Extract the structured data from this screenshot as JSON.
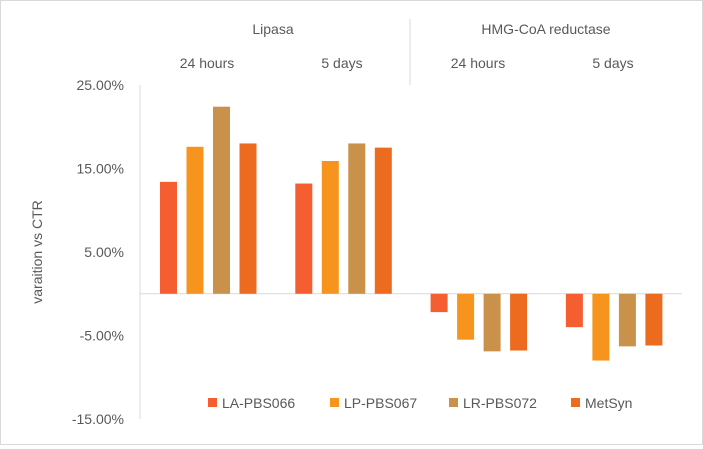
{
  "chart_data": {
    "type": "bar",
    "ylabel": "varaition vs CTR",
    "ylim": [
      -15,
      25
    ],
    "y_ticks": [
      {
        "value": 25,
        "label": "25.00%"
      },
      {
        "value": 15,
        "label": "15.00%"
      },
      {
        "value": 5,
        "label": "5.00%"
      },
      {
        "value": -5,
        "label": "-5.00%"
      },
      {
        "value": -15,
        "label": "-15.00%"
      }
    ],
    "group_labels": [
      "Lipasa",
      "HMG-CoA reductase"
    ],
    "categories": [
      "24 hours",
      "5 days",
      "24 hours",
      "5 days"
    ],
    "series": [
      {
        "name": "LA-PBS066",
        "color": "#f55e31",
        "values": [
          13.4,
          13.2,
          -2.2,
          -4.0
        ]
      },
      {
        "name": "LP-PBS067",
        "color": "#f7941d",
        "values": [
          17.6,
          15.9,
          -5.5,
          -8.0
        ]
      },
      {
        "name": "LR-PBS072",
        "color": "#c9914a",
        "values": [
          22.4,
          18.0,
          -6.9,
          -6.3
        ]
      },
      {
        "name": "MetSyn",
        "color": "#ec6b1f",
        "values": [
          18.0,
          17.5,
          -6.8,
          -6.2
        ]
      }
    ],
    "legend_position": "bottom",
    "grid": false
  }
}
